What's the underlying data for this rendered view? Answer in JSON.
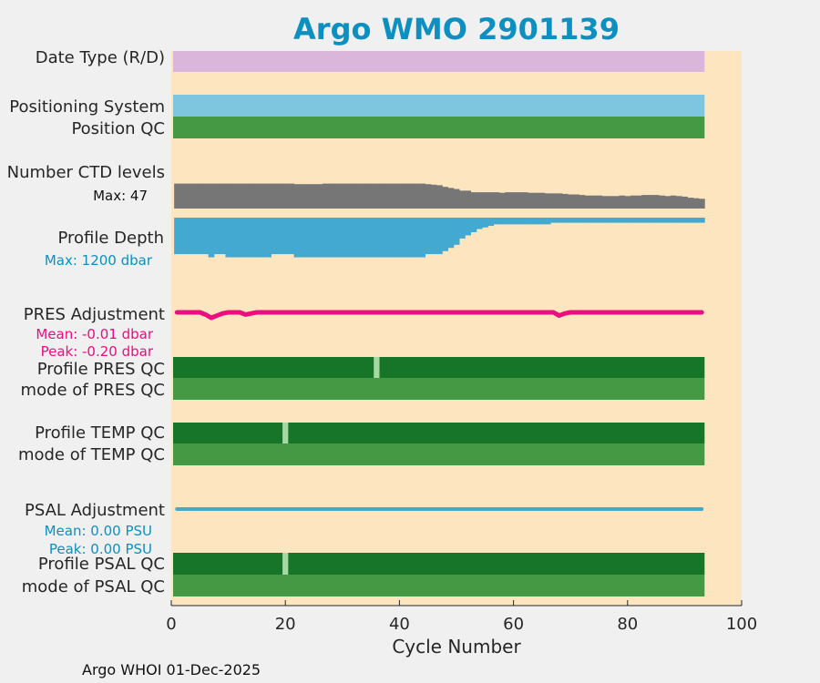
{
  "chart_data": {
    "type": "bar",
    "title": "Argo WMO 2901139",
    "xlabel": "Cycle Number",
    "xlim": [
      0,
      100
    ],
    "x_ticks": [
      "0",
      "20",
      "40",
      "60",
      "80",
      "100"
    ],
    "x_tick_values": [
      0,
      20,
      40,
      60,
      80,
      100
    ],
    "grid": false,
    "cycles": 93,
    "footer": "Argo WHOI 01-Dec-2025",
    "colors": {
      "background": "#fde6bf",
      "date_type": "#dab6db",
      "positioning": "#7ec5df",
      "qc_good": "#459944",
      "qc_dark": "#17752a",
      "qc_flag": "#a7d8a4",
      "ctd": "#767676",
      "depth": "#44a9d0",
      "pres_adj": "#ec0d7e",
      "psal_adj": "#44a9d0"
    },
    "rows": {
      "date_type": {
        "label": "Date Type (R/D)"
      },
      "positioning_system": {
        "label": "Positioning System"
      },
      "position_qc": {
        "label": "Position QC"
      },
      "ctd_levels": {
        "label": "Number CTD levels",
        "max_label": "Max: 47",
        "max": 47,
        "values": [
          46,
          46,
          46,
          46,
          46,
          46,
          46,
          46,
          46,
          46,
          46,
          46,
          46,
          46,
          46,
          46,
          46,
          46,
          46,
          46,
          46,
          45,
          45,
          45,
          45,
          45,
          46,
          46,
          46,
          46,
          46,
          46,
          46,
          46,
          46,
          46,
          46,
          46,
          46,
          46,
          46,
          46,
          46,
          46,
          45,
          44,
          43,
          40,
          38,
          36,
          33,
          33,
          30,
          30,
          30,
          30,
          30,
          29,
          30,
          30,
          30,
          30,
          29,
          29,
          29,
          28,
          28,
          28,
          27,
          26,
          26,
          25,
          24,
          24,
          24,
          23,
          23,
          23,
          24,
          23,
          24,
          24,
          25,
          25,
          25,
          24,
          23,
          24,
          23,
          22,
          20,
          19,
          18
        ]
      },
      "profile_depth": {
        "label": "Profile Depth",
        "max_label": "Max: 1200 dbar",
        "max": 1200,
        "values": [
          1002,
          1002,
          1002,
          1002,
          1002,
          1002,
          1089,
          1002,
          1002,
          1089,
          1089,
          1089,
          1089,
          1089,
          1089,
          1089,
          1089,
          1002,
          1002,
          1002,
          1002,
          1089,
          1089,
          1089,
          1089,
          1089,
          1089,
          1089,
          1089,
          1089,
          1089,
          1089,
          1089,
          1089,
          1089,
          1089,
          1089,
          1089,
          1089,
          1089,
          1089,
          1089,
          1089,
          1089,
          1002,
          1002,
          1002,
          919,
          832,
          746,
          573,
          486,
          400,
          313,
          270,
          227,
          183,
          183,
          183,
          183,
          183,
          183,
          183,
          183,
          183,
          183,
          140,
          140,
          140,
          140,
          140,
          140,
          140,
          140,
          140,
          140,
          140,
          140,
          140,
          140,
          140,
          140,
          140,
          140,
          140,
          140,
          140,
          140,
          140,
          140,
          140,
          140,
          140
        ]
      },
      "pres_adjustment": {
        "label": "PRES Adjustment",
        "mean_label": "Mean: -0.01 dbar",
        "peak_label": "Peak: -0.20 dbar",
        "values": [
          0,
          0,
          0,
          0,
          0,
          -0.08,
          -0.2,
          -0.12,
          -0.04,
          0,
          0,
          0,
          -0.08,
          -0.04,
          0,
          0,
          0,
          0,
          0,
          0,
          0,
          0,
          0,
          0,
          0,
          0,
          0,
          0,
          0,
          0,
          0,
          0,
          0,
          0,
          0,
          0,
          0,
          0,
          0,
          0,
          0,
          0,
          0,
          0,
          0,
          0,
          0,
          0,
          0,
          0,
          0,
          0,
          0,
          0,
          0,
          0,
          0,
          0,
          0,
          0,
          0,
          0,
          0,
          0,
          0,
          0,
          0,
          -0.12,
          -0.04,
          0,
          0,
          0,
          0,
          0,
          0,
          0,
          0,
          0,
          0,
          0,
          0,
          0,
          0,
          0,
          0,
          0,
          0,
          0,
          0,
          0,
          0,
          0,
          0
        ]
      },
      "profile_pres_qc": {
        "label": "Profile PRES QC",
        "flag_cycles": [
          36
        ]
      },
      "mode_pres_qc": {
        "label": "mode of PRES QC"
      },
      "profile_temp_qc": {
        "label": "Profile TEMP QC",
        "flag_cycles": [
          20
        ]
      },
      "mode_temp_qc": {
        "label": "mode of TEMP QC"
      },
      "psal_adjustment": {
        "label": "PSAL Adjustment",
        "mean_label": "Mean: 0.00 PSU",
        "peak_label": "Peak: 0.00 PSU"
      },
      "profile_psal_qc": {
        "label": "Profile PSAL QC",
        "flag_cycles": [
          20
        ]
      },
      "mode_psal_qc": {
        "label": "mode of PSAL QC"
      }
    }
  }
}
